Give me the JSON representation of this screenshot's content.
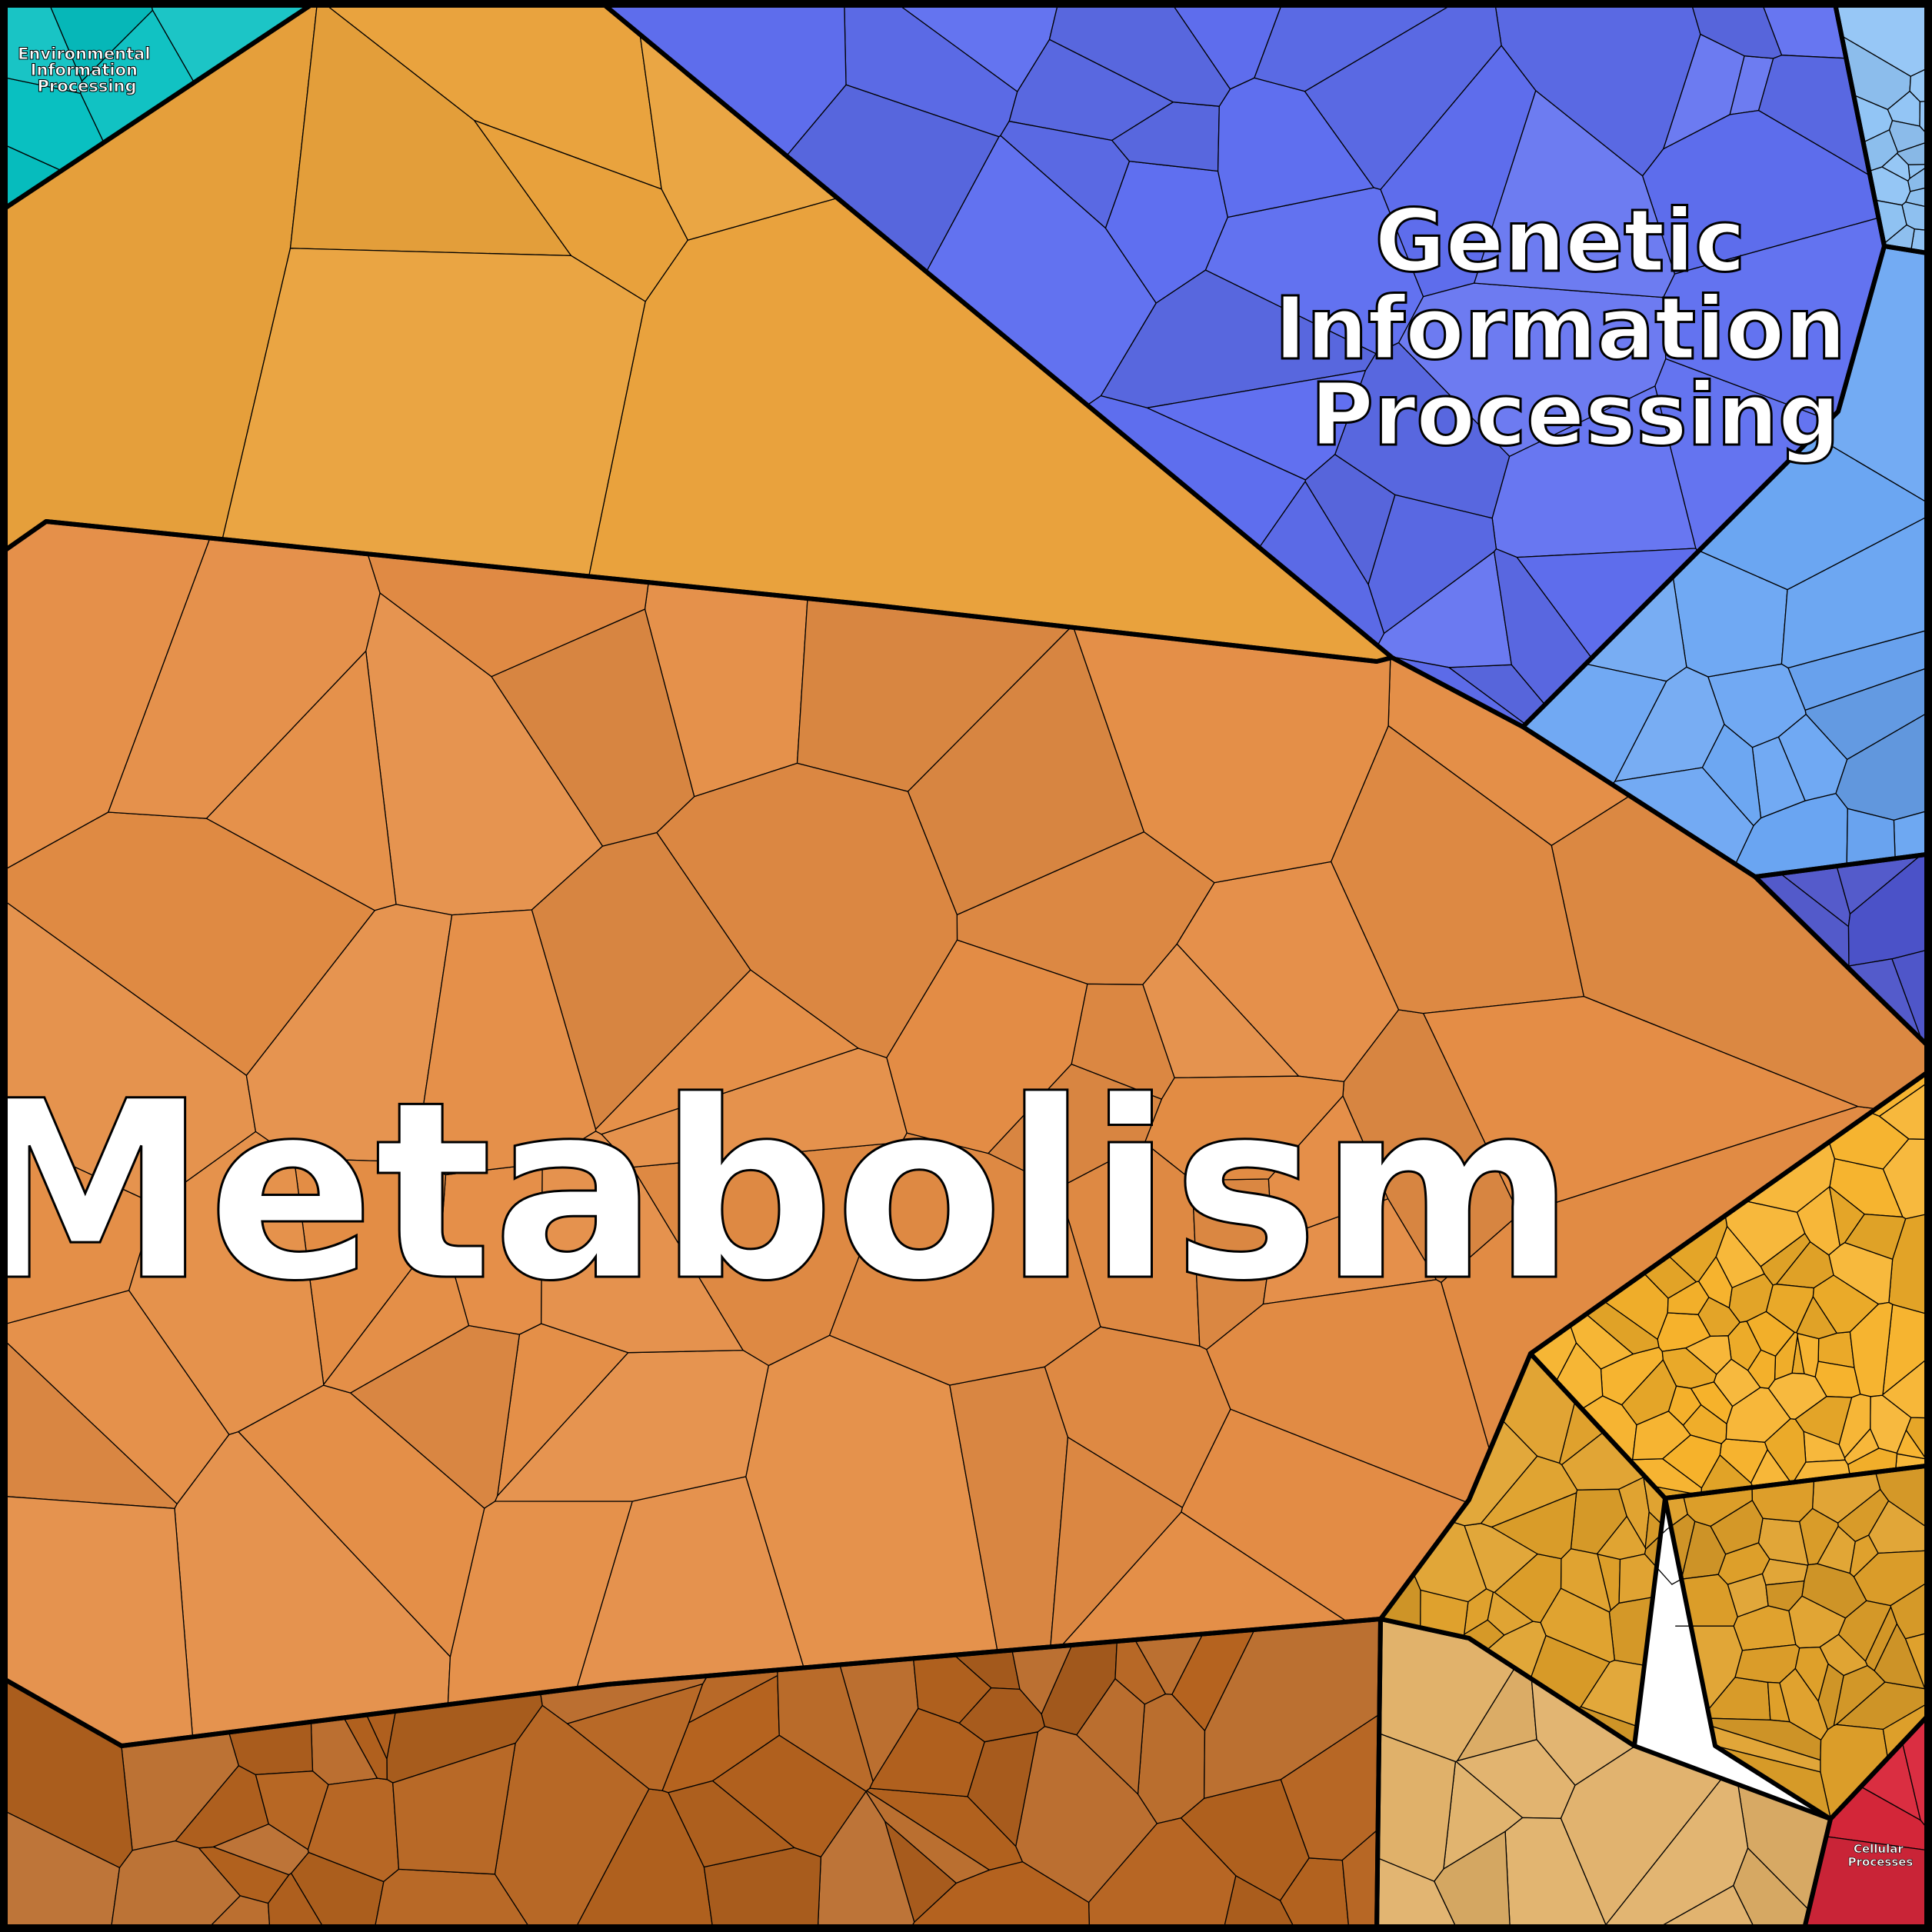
{
  "diagram": {
    "type": "voronoi-treemap",
    "regions": [
      {
        "name": "Metabolism",
        "label": "Metabolism",
        "color": "#e48d45"
      },
      {
        "name": "Genetic Information Processing",
        "label_lines": [
          "Genetic",
          "Information",
          "Processing"
        ],
        "color": "#5f6ff0"
      },
      {
        "name": "Environmental Information Processing",
        "label_lines": [
          "Environmental",
          "Information",
          "Processing"
        ],
        "color": "#06bfc0"
      },
      {
        "name": "Cellular Processes",
        "label_lines": [
          "Cellular",
          "Processes"
        ],
        "color": "#d9273b"
      }
    ],
    "subregion_colors": {
      "metabolism_top": "#e9a23c",
      "metabolism_center": "#df8a46",
      "metabolism_bottom": "#b5631f",
      "amber": "#f6b22b",
      "golden": "#dfa02a",
      "tan": "#e0b068",
      "light_blue": "#6aa5f2",
      "sky_blue": "#91c4f5",
      "indigo": "#4b52c8"
    }
  }
}
